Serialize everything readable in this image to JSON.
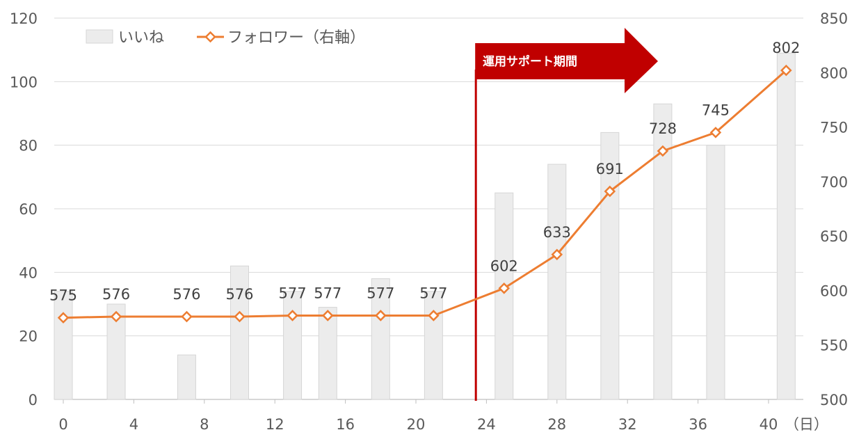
{
  "chart_data": {
    "type": "bar+line",
    "x_unit_label": "（日）",
    "x_ticks": [
      "0",
      "4",
      "8",
      "12",
      "16",
      "20",
      "24",
      "28",
      "32",
      "36",
      "40"
    ],
    "xlim": [
      -0.5,
      41.6
    ],
    "y_left": {
      "ticks": [
        "0",
        "20",
        "40",
        "60",
        "80",
        "100",
        "120"
      ],
      "ylim": [
        0,
        120
      ]
    },
    "y_right": {
      "ticks": [
        "500",
        "550",
        "600",
        "650",
        "700",
        "750",
        "800",
        "850"
      ],
      "ylim": [
        500,
        850
      ]
    },
    "grid": true,
    "legend_position": "top-left",
    "series": [
      {
        "name": "いいね",
        "kind": "bar",
        "axis": "left",
        "color": "#ececec",
        "stroke": "#d6d6d6",
        "points": [
          {
            "x": 0,
            "y": 34
          },
          {
            "x": 3,
            "y": 30
          },
          {
            "x": 7,
            "y": 14
          },
          {
            "x": 10,
            "y": 42
          },
          {
            "x": 13,
            "y": 34
          },
          {
            "x": 15,
            "y": 29
          },
          {
            "x": 18,
            "y": 38
          },
          {
            "x": 21,
            "y": 34
          },
          {
            "x": 25,
            "y": 65
          },
          {
            "x": 28,
            "y": 74
          },
          {
            "x": 31,
            "y": 84
          },
          {
            "x": 34,
            "y": 93
          },
          {
            "x": 37,
            "y": 80
          },
          {
            "x": 41,
            "y": 109
          }
        ]
      },
      {
        "name": "フォロワー（右軸）",
        "kind": "line",
        "axis": "right",
        "color": "#ed7d31",
        "points": [
          {
            "x": 0,
            "y": 575,
            "label": "575"
          },
          {
            "x": 3,
            "y": 576,
            "label": "576"
          },
          {
            "x": 7,
            "y": 576,
            "label": "576"
          },
          {
            "x": 10,
            "y": 576,
            "label": "576"
          },
          {
            "x": 13,
            "y": 577,
            "label": "577"
          },
          {
            "x": 15,
            "y": 577,
            "label": "577"
          },
          {
            "x": 18,
            "y": 577,
            "label": "577"
          },
          {
            "x": 21,
            "y": 577,
            "label": "577"
          },
          {
            "x": 25,
            "y": 602,
            "label": "602"
          },
          {
            "x": 28,
            "y": 633,
            "label": "633"
          },
          {
            "x": 31,
            "y": 691,
            "label": "691"
          },
          {
            "x": 34,
            "y": 728,
            "label": "728"
          },
          {
            "x": 37,
            "y": 745,
            "label": "745"
          },
          {
            "x": 41,
            "y": 802,
            "label": "802"
          }
        ]
      }
    ],
    "annotation": {
      "text": "運用サポート期間",
      "start_x": 23.4,
      "color": "#c00000"
    }
  }
}
